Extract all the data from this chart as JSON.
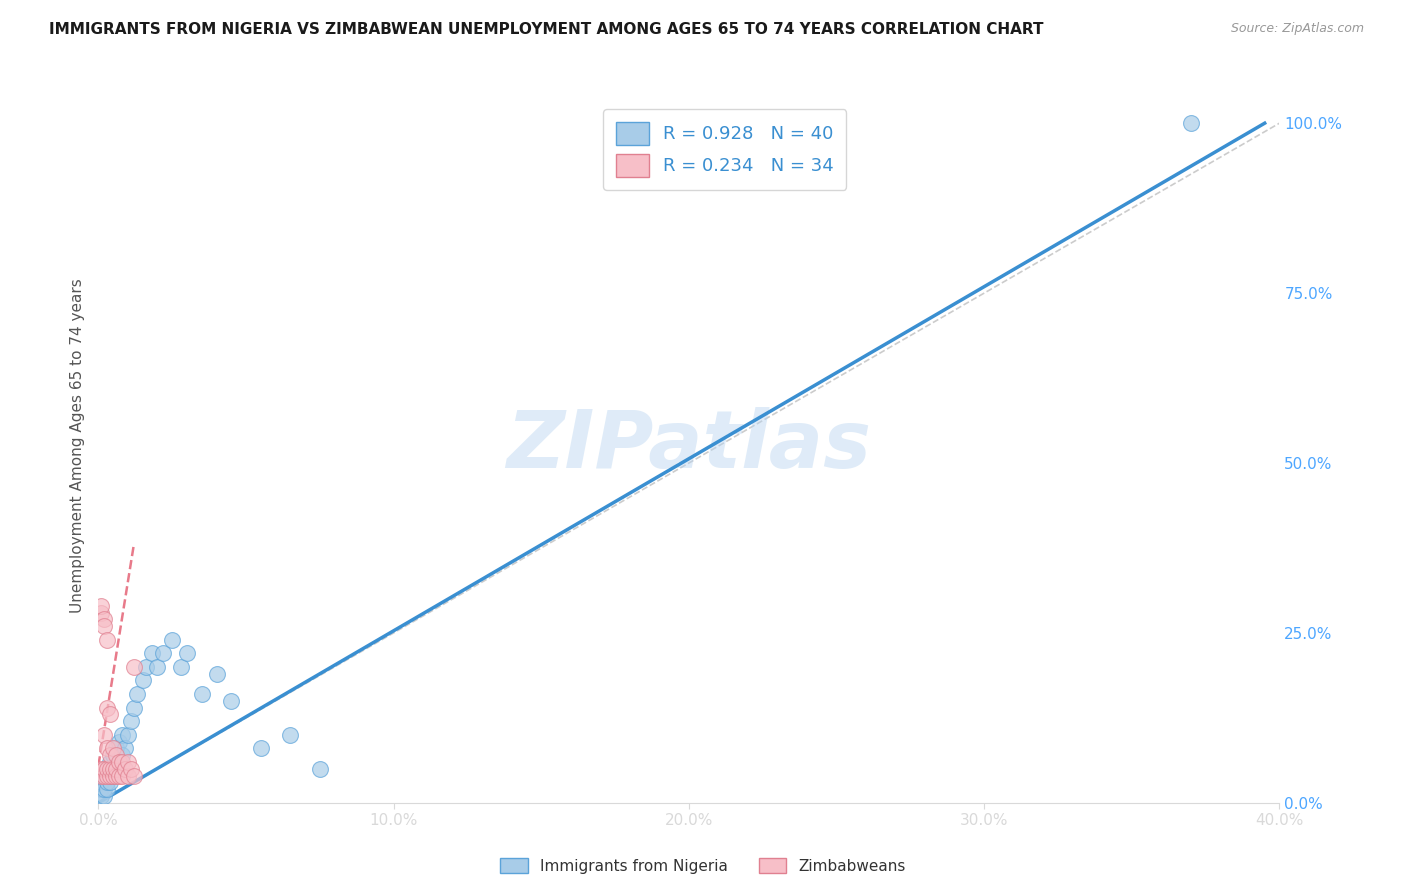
{
  "title": "IMMIGRANTS FROM NIGERIA VS ZIMBABWEAN UNEMPLOYMENT AMONG AGES 65 TO 74 YEARS CORRELATION CHART",
  "source": "Source: ZipAtlas.com",
  "ylabel": "Unemployment Among Ages 65 to 74 years",
  "x_min": 0.0,
  "x_max": 0.4,
  "y_min": 0.0,
  "y_max": 1.05,
  "x_ticks": [
    0.0,
    0.1,
    0.2,
    0.3,
    0.4
  ],
  "x_tick_labels": [
    "0.0%",
    "10.0%",
    "20.0%",
    "30.0%",
    "40.0%"
  ],
  "y_ticks_right": [
    0.0,
    0.25,
    0.5,
    0.75,
    1.0
  ],
  "y_tick_labels_right": [
    "0.0%",
    "25.0%",
    "50.0%",
    "75.0%",
    "100.0%"
  ],
  "watermark": "ZIPatlas",
  "nigeria_R": 0.928,
  "nigeria_N": 40,
  "zimbabwe_R": 0.234,
  "zimbabwe_N": 34,
  "nigeria_color": "#a8cce8",
  "nigeria_color_line": "#3a8fd1",
  "nigeria_edge_color": "#5ba3d9",
  "zimbabwe_color": "#f7bfc8",
  "zimbabwe_color_line": "#e87a8a",
  "zimbabwe_edge_color": "#e08090",
  "nigeria_line_x": [
    0.0,
    0.395
  ],
  "nigeria_line_y": [
    0.0,
    1.0
  ],
  "zimbabwe_line_x": [
    0.0,
    0.012
  ],
  "zimbabwe_line_y": [
    0.055,
    0.38
  ],
  "diag_line_x": [
    0.0,
    0.4
  ],
  "diag_line_y": [
    0.0,
    1.0
  ],
  "nigeria_scatter_x": [
    0.001,
    0.001,
    0.001,
    0.002,
    0.002,
    0.002,
    0.003,
    0.003,
    0.003,
    0.004,
    0.004,
    0.004,
    0.005,
    0.005,
    0.006,
    0.006,
    0.007,
    0.007,
    0.008,
    0.008,
    0.009,
    0.01,
    0.011,
    0.012,
    0.013,
    0.015,
    0.016,
    0.018,
    0.02,
    0.022,
    0.025,
    0.028,
    0.03,
    0.035,
    0.04,
    0.045,
    0.055,
    0.065,
    0.075,
    0.37
  ],
  "nigeria_scatter_y": [
    0.01,
    0.02,
    0.03,
    0.01,
    0.02,
    0.04,
    0.02,
    0.03,
    0.05,
    0.03,
    0.04,
    0.06,
    0.04,
    0.07,
    0.05,
    0.08,
    0.06,
    0.09,
    0.07,
    0.1,
    0.08,
    0.1,
    0.12,
    0.14,
    0.16,
    0.18,
    0.2,
    0.22,
    0.2,
    0.22,
    0.24,
    0.2,
    0.22,
    0.16,
    0.19,
    0.15,
    0.08,
    0.1,
    0.05,
    1.0
  ],
  "zimbabwe_scatter_x": [
    0.001,
    0.001,
    0.001,
    0.001,
    0.002,
    0.002,
    0.002,
    0.002,
    0.002,
    0.003,
    0.003,
    0.003,
    0.003,
    0.003,
    0.004,
    0.004,
    0.004,
    0.004,
    0.005,
    0.005,
    0.005,
    0.006,
    0.006,
    0.006,
    0.007,
    0.007,
    0.008,
    0.008,
    0.009,
    0.01,
    0.01,
    0.011,
    0.012,
    0.012
  ],
  "zimbabwe_scatter_y": [
    0.04,
    0.05,
    0.28,
    0.29,
    0.04,
    0.05,
    0.1,
    0.27,
    0.26,
    0.04,
    0.05,
    0.08,
    0.14,
    0.24,
    0.04,
    0.05,
    0.07,
    0.13,
    0.04,
    0.05,
    0.08,
    0.04,
    0.05,
    0.07,
    0.04,
    0.06,
    0.04,
    0.06,
    0.05,
    0.04,
    0.06,
    0.05,
    0.04,
    0.2
  ],
  "background_color": "#ffffff",
  "grid_color": "#d9d9d9"
}
